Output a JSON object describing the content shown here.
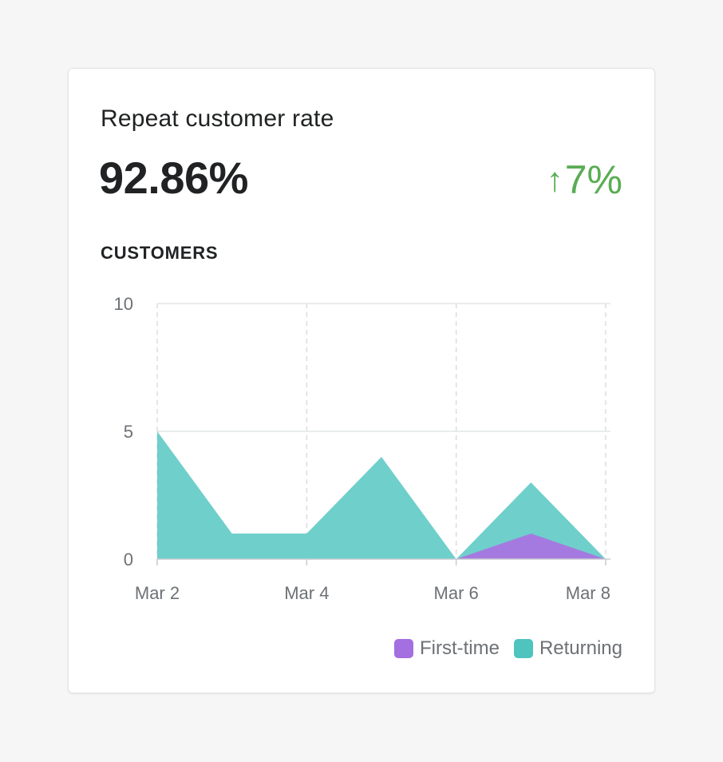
{
  "card": {
    "title": "Repeat customer rate",
    "metric": "92.86%",
    "change": {
      "arrow": "↑",
      "value": "7%",
      "color": "#5aac54"
    },
    "section_label": "CUSTOMERS"
  },
  "chart_data": {
    "type": "area",
    "stacked": true,
    "x": [
      "Mar 2",
      "Mar 3",
      "Mar 4",
      "Mar 5",
      "Mar 6",
      "Mar 7",
      "Mar 8"
    ],
    "x_tick_labels": [
      "Mar 2",
      "Mar 4",
      "Mar 6",
      "Mar 8"
    ],
    "y_tick_labels": [
      "0",
      "5",
      "10"
    ],
    "ylim": [
      0,
      10
    ],
    "grid": true,
    "legend_position": "bottom-right",
    "series": [
      {
        "name": "First-time",
        "color": "#a57ae0",
        "values": [
          0,
          0,
          0,
          0,
          0,
          1,
          0
        ]
      },
      {
        "name": "Returning",
        "color": "#6fcfcb",
        "values": [
          5,
          1,
          1,
          4,
          0,
          2,
          0
        ]
      }
    ]
  },
  "legend": {
    "items": [
      {
        "label": "First-time",
        "color": "#a46fe0"
      },
      {
        "label": "Returning",
        "color": "#4fc3be"
      }
    ]
  }
}
